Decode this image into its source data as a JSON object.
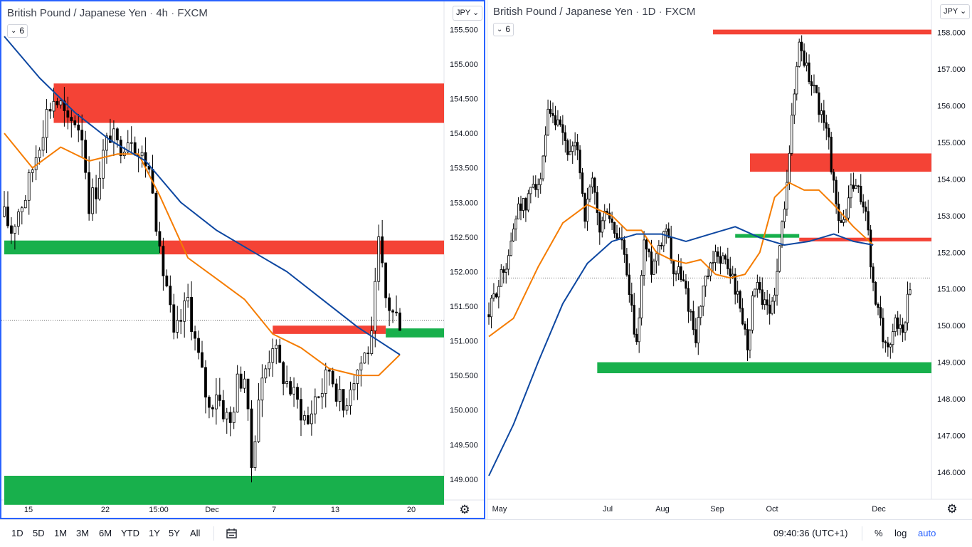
{
  "colors": {
    "up": "#ffffff",
    "down": "#000000",
    "wick": "#000000",
    "supply_zone": "#f44336",
    "demand_zone": "#18b04c",
    "ma_fast": "#f57c00",
    "ma_slow": "#0d47a1",
    "accent": "#2962ff"
  },
  "icons": {
    "gear": "gear-icon",
    "compare": "date-range-icon",
    "chevron": "chevron-down-icon"
  },
  "left_chart": {
    "title_symbol": "British Pound / Japanese Yen",
    "title_interval": "4h",
    "title_source": "FXCM",
    "collapse_label": "6",
    "currency_label": "JPY",
    "price_labels": [
      "155.500",
      "155.000",
      "154.500",
      "154.000",
      "153.500",
      "153.000",
      "152.500",
      "152.000",
      "151.500",
      "151.000",
      "150.500",
      "150.000",
      "149.500",
      "149.000"
    ],
    "time_labels": [
      "15",
      "22",
      "15:00",
      "Dec",
      "7",
      "13",
      "20"
    ]
  },
  "right_chart": {
    "title_symbol": "British Pound / Japanese Yen",
    "title_interval": "1D",
    "title_source": "FXCM",
    "collapse_label": "6",
    "currency_label": "JPY",
    "price_labels": [
      "158.000",
      "157.000",
      "156.000",
      "155.000",
      "154.000",
      "153.000",
      "152.000",
      "151.000",
      "150.000",
      "149.000",
      "148.000",
      "147.000",
      "146.000"
    ],
    "time_labels": [
      "May",
      "Jul",
      "Aug",
      "Sep",
      "Oct",
      "Dec"
    ]
  },
  "bottom_bar": {
    "ranges": [
      "1D",
      "5D",
      "1M",
      "3M",
      "6M",
      "YTD",
      "1Y",
      "5Y",
      "All"
    ],
    "clock": "09:40:36 (UTC+1)",
    "percent": "%",
    "log": "log",
    "auto": "auto"
  },
  "chart_data": [
    {
      "type": "candlestick",
      "title": "British Pound / Japanese Yen · 4h · FXCM",
      "ylim": [
        148.7,
        155.7
      ],
      "x_ticks": [
        "15",
        "22",
        "15:00",
        "Dec",
        "7",
        "13",
        "20"
      ],
      "close_path": [
        [
          0,
          152.8
        ],
        [
          1,
          152.6
        ],
        [
          2,
          152.9
        ],
        [
          3,
          153.1
        ],
        [
          4,
          153.5
        ],
        [
          5,
          153.9
        ],
        [
          6,
          154.3
        ],
        [
          7,
          154.5
        ],
        [
          8,
          154.4
        ],
        [
          9,
          154.1
        ],
        [
          10,
          154.2
        ],
        [
          11,
          154.0
        ],
        [
          12,
          153.0
        ],
        [
          13,
          153.2
        ],
        [
          14,
          153.7
        ],
        [
          15,
          154.0
        ],
        [
          16,
          153.8
        ],
        [
          17,
          153.9
        ],
        [
          18,
          154.0
        ],
        [
          19,
          153.7
        ],
        [
          20,
          153.6
        ],
        [
          21,
          153.3
        ],
        [
          22,
          152.2
        ],
        [
          23,
          151.8
        ],
        [
          24,
          151.0
        ],
        [
          25,
          151.3
        ],
        [
          26,
          151.6
        ],
        [
          27,
          151.0
        ],
        [
          28,
          150.5
        ],
        [
          29,
          150.0
        ],
        [
          30,
          150.3
        ],
        [
          31,
          150.0
        ],
        [
          32,
          149.8
        ],
        [
          33,
          150.4
        ],
        [
          34,
          150.5
        ],
        [
          35,
          149.2
        ],
        [
          36,
          150.2
        ],
        [
          37,
          150.6
        ],
        [
          38,
          151.0
        ],
        [
          39,
          150.6
        ],
        [
          40,
          150.4
        ],
        [
          41,
          150.2
        ],
        [
          42,
          150.0
        ],
        [
          43,
          149.8
        ],
        [
          44,
          150.2
        ],
        [
          45,
          150.3
        ],
        [
          46,
          150.6
        ],
        [
          47,
          150.3
        ],
        [
          48,
          150.0
        ],
        [
          49,
          150.4
        ],
        [
          50,
          150.6
        ],
        [
          51,
          150.8
        ],
        [
          52,
          151.0
        ],
        [
          53,
          152.4
        ],
        [
          54,
          151.6
        ],
        [
          55,
          151.4
        ],
        [
          56,
          151.3
        ]
      ],
      "ma_fast": [
        [
          0,
          154.0
        ],
        [
          4,
          153.5
        ],
        [
          8,
          153.8
        ],
        [
          12,
          153.6
        ],
        [
          16,
          153.7
        ],
        [
          19,
          153.7
        ],
        [
          22,
          153.1
        ],
        [
          26,
          152.2
        ],
        [
          30,
          151.9
        ],
        [
          34,
          151.6
        ],
        [
          38,
          151.1
        ],
        [
          42,
          150.9
        ],
        [
          46,
          150.6
        ],
        [
          50,
          150.5
        ],
        [
          53,
          150.5
        ],
        [
          56,
          150.8
        ]
      ],
      "ma_slow": [
        [
          0,
          155.4
        ],
        [
          5,
          154.8
        ],
        [
          10,
          154.3
        ],
        [
          15,
          153.9
        ],
        [
          20,
          153.6
        ],
        [
          25,
          153.0
        ],
        [
          30,
          152.6
        ],
        [
          35,
          152.3
        ],
        [
          40,
          152.0
        ],
        [
          45,
          151.6
        ],
        [
          50,
          151.2
        ],
        [
          53,
          151.0
        ],
        [
          56,
          150.8
        ]
      ],
      "zones": [
        {
          "kind": "supply",
          "from": 154.15,
          "to": 154.72,
          "x_start": 7
        },
        {
          "kind": "supply",
          "from": 152.25,
          "to": 152.45,
          "x_start": 22
        },
        {
          "kind": "demand",
          "from": 152.25,
          "to": 152.45,
          "x_start": 0,
          "x_end": 22
        },
        {
          "kind": "supply",
          "from": 151.1,
          "to": 151.22,
          "x_start": 38,
          "x_end": 54
        },
        {
          "kind": "demand",
          "from": 151.05,
          "to": 151.18,
          "x_start": 54
        },
        {
          "kind": "demand",
          "from": 148.63,
          "to": 149.05,
          "x_start": 0
        }
      ],
      "last_price": 151.3
    },
    {
      "type": "candlestick",
      "title": "British Pound / Japanese Yen · 1D · FXCM",
      "ylim": [
        145.2,
        158.5
      ],
      "x_ticks": [
        "May",
        "Jul",
        "Aug",
        "Sep",
        "Oct",
        "Dec"
      ],
      "close_path": [
        [
          0,
          150.3
        ],
        [
          3,
          151.0
        ],
        [
          6,
          151.5
        ],
        [
          9,
          152.2
        ],
        [
          12,
          153.4
        ],
        [
          15,
          153.2
        ],
        [
          18,
          154.0
        ],
        [
          21,
          153.8
        ],
        [
          24,
          155.7
        ],
        [
          27,
          155.5
        ],
        [
          30,
          155.2
        ],
        [
          33,
          154.6
        ],
        [
          36,
          154.9
        ],
        [
          39,
          153.0
        ],
        [
          42,
          153.9
        ],
        [
          45,
          152.6
        ],
        [
          48,
          153.2
        ],
        [
          51,
          152.5
        ],
        [
          54,
          152.3
        ],
        [
          57,
          150.8
        ],
        [
          60,
          149.4
        ],
        [
          63,
          152.3
        ],
        [
          66,
          151.6
        ],
        [
          69,
          152.2
        ],
        [
          72,
          152.8
        ],
        [
          75,
          151.5
        ],
        [
          78,
          151.4
        ],
        [
          81,
          150.6
        ],
        [
          84,
          149.7
        ],
        [
          87,
          151.0
        ],
        [
          90,
          151.5
        ],
        [
          93,
          152.0
        ],
        [
          96,
          151.7
        ],
        [
          99,
          151.3
        ],
        [
          102,
          150.5
        ],
        [
          105,
          149.5
        ],
        [
          108,
          151.2
        ],
        [
          111,
          150.6
        ],
        [
          114,
          150.3
        ],
        [
          117,
          151.4
        ],
        [
          120,
          153.4
        ],
        [
          123,
          155.6
        ],
        [
          126,
          157.8
        ],
        [
          129,
          157.0
        ],
        [
          132,
          156.5
        ],
        [
          135,
          155.7
        ],
        [
          138,
          155.0
        ],
        [
          141,
          153.2
        ],
        [
          144,
          152.7
        ],
        [
          147,
          153.8
        ],
        [
          150,
          153.6
        ],
        [
          153,
          153.2
        ],
        [
          156,
          151.0
        ],
        [
          159,
          150.0
        ],
        [
          162,
          149.3
        ],
        [
          165,
          150.2
        ],
        [
          168,
          149.8
        ],
        [
          171,
          151.2
        ]
      ],
      "ma_fast": [
        [
          0,
          149.7
        ],
        [
          10,
          150.2
        ],
        [
          20,
          151.6
        ],
        [
          30,
          152.8
        ],
        [
          40,
          153.3
        ],
        [
          50,
          153.0
        ],
        [
          56,
          152.6
        ],
        [
          62,
          152.6
        ],
        [
          68,
          152.0
        ],
        [
          74,
          151.8
        ],
        [
          80,
          151.7
        ],
        [
          86,
          151.8
        ],
        [
          92,
          151.4
        ],
        [
          98,
          151.3
        ],
        [
          104,
          151.4
        ],
        [
          110,
          152.0
        ],
        [
          116,
          153.5
        ],
        [
          122,
          153.9
        ],
        [
          128,
          153.7
        ],
        [
          134,
          153.7
        ],
        [
          140,
          153.3
        ],
        [
          148,
          152.7
        ],
        [
          156,
          152.2
        ]
      ],
      "ma_slow": [
        [
          0,
          145.9
        ],
        [
          10,
          147.3
        ],
        [
          20,
          149.0
        ],
        [
          30,
          150.6
        ],
        [
          40,
          151.7
        ],
        [
          50,
          152.3
        ],
        [
          60,
          152.5
        ],
        [
          70,
          152.5
        ],
        [
          80,
          152.3
        ],
        [
          90,
          152.5
        ],
        [
          100,
          152.7
        ],
        [
          110,
          152.4
        ],
        [
          120,
          152.2
        ],
        [
          130,
          152.3
        ],
        [
          140,
          152.5
        ],
        [
          148,
          152.3
        ],
        [
          156,
          152.2
        ]
      ],
      "zones": [
        {
          "kind": "supply",
          "from": 157.95,
          "to": 158.08,
          "x_start": 91
        },
        {
          "kind": "supply",
          "from": 154.2,
          "to": 154.7,
          "x_start": 106
        },
        {
          "kind": "supply",
          "from": 152.3,
          "to": 152.4,
          "x_start": 126
        },
        {
          "kind": "demand",
          "from": 152.4,
          "to": 152.5,
          "x_start": 100,
          "x_end": 126
        },
        {
          "kind": "demand",
          "from": 148.7,
          "to": 149.0,
          "x_start": 44
        }
      ],
      "last_price": 151.3
    }
  ]
}
